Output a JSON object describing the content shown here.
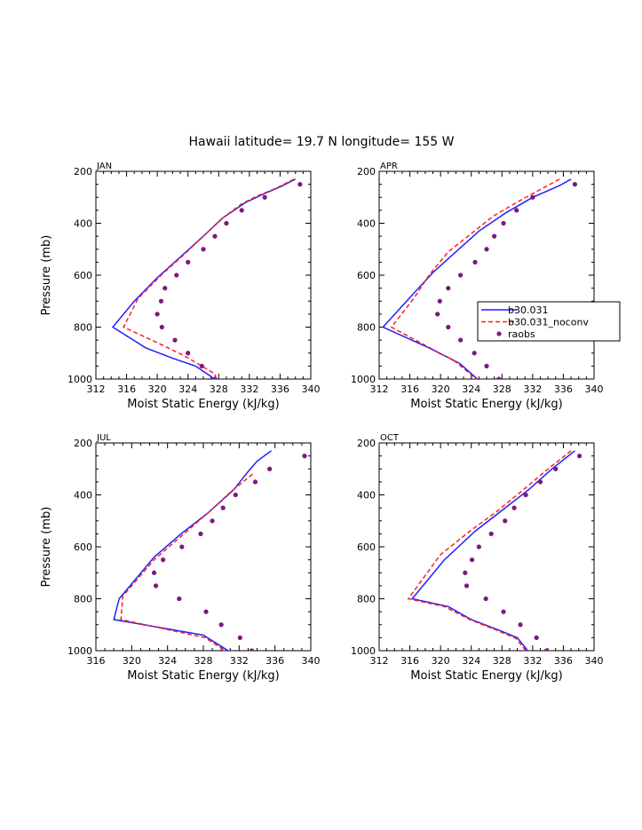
{
  "title": "Hawaii  latitude= 19.7 N longitude= 155 W",
  "legend": {
    "entries": [
      {
        "label": "b30.031",
        "style": "solid",
        "color": "#1f1fff"
      },
      {
        "label": "b30.031_noconv",
        "style": "dashed",
        "color": "#ff1f1f"
      },
      {
        "label": "raobs",
        "style": "dots",
        "color": "#7b1a7b"
      }
    ]
  },
  "colors": {
    "model": "#1f1fff",
    "noconv": "#ff1f1f",
    "raobs": "#7b1a7b",
    "axis": "#000000"
  },
  "chart_data": [
    {
      "type": "line",
      "panel": "JAN",
      "xlabel": "Moist Static Energy (kJ/kg)",
      "ylabel": "Pressure (mb)",
      "xlim": [
        312,
        340
      ],
      "ylim": [
        1000,
        200
      ],
      "xticks": [
        312,
        316,
        320,
        324,
        328,
        332,
        336,
        340
      ],
      "yticks": [
        200,
        400,
        600,
        800,
        1000
      ],
      "series": [
        {
          "name": "b30.031",
          "points": [
            [
              338.0,
              230
            ],
            [
              336.0,
              260
            ],
            [
              334.0,
              285
            ],
            [
              331.5,
              320
            ],
            [
              328.5,
              380
            ],
            [
              326.0,
              450
            ],
            [
              323.0,
              530
            ],
            [
              320.0,
              610
            ],
            [
              317.0,
              700
            ],
            [
              314.2,
              800
            ],
            [
              318.5,
              880
            ],
            [
              322.0,
              920
            ],
            [
              325.0,
              950
            ],
            [
              327.0,
              990
            ],
            [
              327.6,
              1005
            ]
          ]
        },
        {
          "name": "b30.031_noconv",
          "points": [
            [
              337.8,
              230
            ],
            [
              335.5,
              265
            ],
            [
              333.0,
              295
            ],
            [
              331.0,
              325
            ],
            [
              328.5,
              380
            ],
            [
              326.0,
              450
            ],
            [
              323.5,
              520
            ],
            [
              320.5,
              600
            ],
            [
              317.5,
              690
            ],
            [
              315.6,
              800
            ],
            [
              320.0,
              860
            ],
            [
              323.5,
              910
            ],
            [
              325.5,
              945
            ],
            [
              327.5,
              980
            ],
            [
              327.7,
              1003
            ]
          ]
        },
        {
          "name": "raobs",
          "points": [
            [
              338.6,
              250
            ],
            [
              334.0,
              300
            ],
            [
              331.0,
              350
            ],
            [
              329.0,
              400
            ],
            [
              327.5,
              450
            ],
            [
              326.0,
              500
            ],
            [
              324.0,
              550
            ],
            [
              322.5,
              600
            ],
            [
              321.0,
              650
            ],
            [
              320.5,
              700
            ],
            [
              320.0,
              750
            ],
            [
              320.6,
              800
            ],
            [
              322.3,
              850
            ],
            [
              324.0,
              900
            ],
            [
              325.8,
              950
            ],
            [
              327.5,
              1000
            ]
          ]
        }
      ]
    },
    {
      "type": "line",
      "panel": "APR",
      "xlabel": "Moist Static Energy (kJ/kg)",
      "ylabel": "",
      "xlim": [
        312,
        340
      ],
      "ylim": [
        1000,
        200
      ],
      "xticks": [
        312,
        316,
        320,
        324,
        328,
        332,
        336,
        340
      ],
      "yticks": [
        200,
        400,
        600,
        800,
        1000
      ],
      "series": [
        {
          "name": "b30.031",
          "points": [
            [
              337.0,
              230
            ],
            [
              335.5,
              255
            ],
            [
              332.0,
              300
            ],
            [
              328.5,
              360
            ],
            [
              325.0,
              430
            ],
            [
              322.0,
              510
            ],
            [
              319.0,
              590
            ],
            [
              316.5,
              670
            ],
            [
              312.5,
              800
            ],
            [
              318.5,
              880
            ],
            [
              322.5,
              940
            ],
            [
              325.0,
              1005
            ]
          ]
        },
        {
          "name": "b30.031_noconv",
          "points": [
            [
              335.5,
              230
            ],
            [
              333.0,
              270
            ],
            [
              330.5,
              310
            ],
            [
              327.0,
              370
            ],
            [
              324.0,
              440
            ],
            [
              321.0,
              510
            ],
            [
              318.5,
              600
            ],
            [
              316.5,
              690
            ],
            [
              313.6,
              800
            ],
            [
              318.0,
              870
            ],
            [
              321.8,
              930
            ],
            [
              324.8,
              1003
            ]
          ]
        },
        {
          "name": "raobs",
          "points": [
            [
              337.5,
              250
            ],
            [
              332.0,
              300
            ],
            [
              329.9,
              350
            ],
            [
              328.2,
              400
            ],
            [
              327.0,
              450
            ],
            [
              326.0,
              500
            ],
            [
              324.5,
              550
            ],
            [
              322.6,
              600
            ],
            [
              321.0,
              650
            ],
            [
              319.9,
              700
            ],
            [
              319.6,
              750
            ],
            [
              321.0,
              800
            ],
            [
              322.6,
              850
            ],
            [
              324.4,
              900
            ],
            [
              326.0,
              950
            ],
            [
              327.6,
              1000
            ]
          ]
        }
      ]
    },
    {
      "type": "line",
      "panel": "JUL",
      "xlabel": "Moist Static Energy (kJ/kg)",
      "ylabel": "Pressure (mb)",
      "xlim": [
        316,
        340
      ],
      "ylim": [
        1000,
        200
      ],
      "xticks": [
        316,
        320,
        324,
        328,
        332,
        336,
        340
      ],
      "yticks": [
        200,
        400,
        600,
        800,
        1000
      ],
      "series": [
        {
          "name": "b30.031",
          "points": [
            [
              335.6,
              230
            ],
            [
              334.0,
              270
            ],
            [
              333.0,
              310
            ],
            [
              331.4,
              380
            ],
            [
              328.5,
              470
            ],
            [
              325.5,
              550
            ],
            [
              322.5,
              640
            ],
            [
              318.6,
              800
            ],
            [
              318.0,
              880
            ],
            [
              328.0,
              940
            ],
            [
              331.0,
              1005
            ]
          ]
        },
        {
          "name": "b30.031_noconv",
          "points": [
            [
              333.5,
              320
            ],
            [
              331.0,
              390
            ],
            [
              328.5,
              470
            ],
            [
              325.5,
              560
            ],
            [
              322.5,
              650
            ],
            [
              319.0,
              790
            ],
            [
              318.8,
              880
            ],
            [
              328.2,
              950
            ],
            [
              330.6,
              1003
            ]
          ]
        },
        {
          "name": "raobs",
          "points": [
            [
              339.3,
              250
            ],
            [
              335.4,
              300
            ],
            [
              333.8,
              350
            ],
            [
              331.6,
              400
            ],
            [
              330.2,
              450
            ],
            [
              329.0,
              500
            ],
            [
              327.7,
              550
            ],
            [
              325.6,
              600
            ],
            [
              323.5,
              650
            ],
            [
              322.5,
              700
            ],
            [
              322.7,
              750
            ],
            [
              325.3,
              800
            ],
            [
              328.3,
              850
            ],
            [
              330.0,
              900
            ],
            [
              332.1,
              950
            ],
            [
              333.4,
              1000
            ]
          ]
        }
      ]
    },
    {
      "type": "line",
      "panel": "OCT",
      "xlabel": "Moist Static Energy (kJ/kg)",
      "ylabel": "",
      "xlim": [
        312,
        340
      ],
      "ylim": [
        1000,
        200
      ],
      "xticks": [
        312,
        316,
        320,
        324,
        328,
        332,
        336,
        340
      ],
      "yticks": [
        200,
        400,
        600,
        800,
        1000
      ],
      "series": [
        {
          "name": "b30.031",
          "points": [
            [
              337.5,
              230
            ],
            [
              334.5,
              300
            ],
            [
              331.5,
              380
            ],
            [
              328.0,
              460
            ],
            [
              324.5,
              540
            ],
            [
              320.5,
              650
            ],
            [
              316.3,
              800
            ],
            [
              321.0,
              830
            ],
            [
              324.0,
              880
            ],
            [
              327.5,
              920
            ],
            [
              330.0,
              950
            ],
            [
              331.5,
              1005
            ]
          ]
        },
        {
          "name": "b30.031_noconv",
          "points": [
            [
              337.0,
              230
            ],
            [
              334.0,
              300
            ],
            [
              330.8,
              380
            ],
            [
              327.5,
              460
            ],
            [
              323.8,
              540
            ],
            [
              320.0,
              630
            ],
            [
              315.8,
              800
            ],
            [
              320.5,
              830
            ],
            [
              323.8,
              880
            ],
            [
              327.2,
              920
            ],
            [
              329.8,
              952
            ],
            [
              331.2,
              1003
            ]
          ]
        },
        {
          "name": "raobs",
          "points": [
            [
              338.1,
              250
            ],
            [
              335.0,
              300
            ],
            [
              333.0,
              350
            ],
            [
              331.1,
              400
            ],
            [
              329.6,
              450
            ],
            [
              328.4,
              500
            ],
            [
              326.6,
              550
            ],
            [
              325.0,
              600
            ],
            [
              324.1,
              650
            ],
            [
              323.2,
              700
            ],
            [
              323.4,
              750
            ],
            [
              325.9,
              800
            ],
            [
              328.2,
              850
            ],
            [
              330.4,
              900
            ],
            [
              332.5,
              950
            ],
            [
              333.8,
              1000
            ]
          ]
        }
      ]
    }
  ]
}
